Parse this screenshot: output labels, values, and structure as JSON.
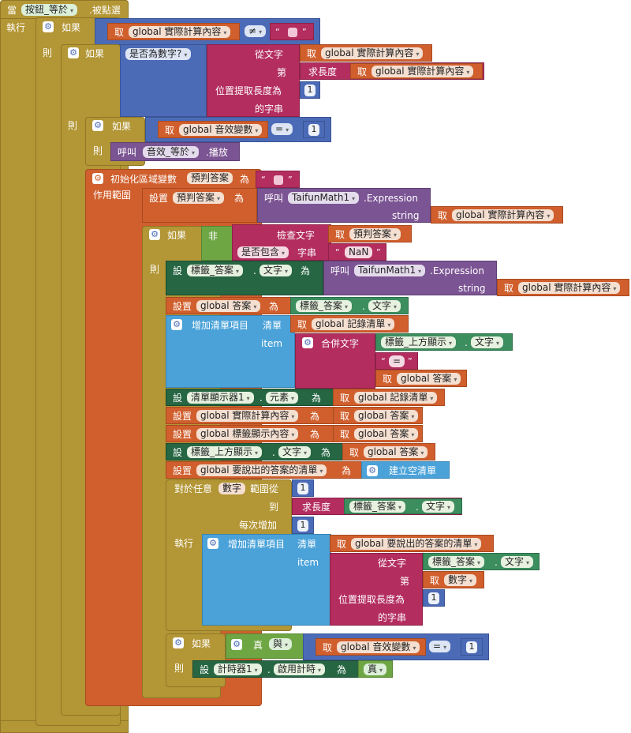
{
  "event": {
    "when": "當",
    "component": "按鈕_等於",
    "event_name": ".被點選",
    "do": "執行"
  },
  "labels": {
    "if": "如果",
    "then": "則",
    "do": "執行",
    "get": "取",
    "call": "呼叫",
    "set": "設置",
    "set_short": "設",
    "to": "為",
    "scope": "作用範圍",
    "is_number": "是否為數字?",
    "from_text": "從文字",
    "start": "第",
    "length": "求長度",
    "substring_length": "位置提取長度為",
    "substring_end": "的字串",
    "init_local": "初始化區域變數",
    "not": "非",
    "check_text": "檢查文字",
    "contains": "是否包含",
    "piece": "字串",
    "add_item": "增加清單項目",
    "list": "清單",
    "item": "item",
    "join": "合併文字",
    "for_range": "對於任意",
    "range_from": "範圍從",
    "range_to": "到",
    "range_step": "每次增加",
    "create_empty": "建立空清單",
    "and": "與",
    "true": "真",
    "play": ".播放",
    "expression": ".Expression",
    "string": "string",
    "dot": ".",
    "neq": "≠",
    "eq": "=",
    "dropdown": "▾"
  },
  "vars": {
    "actual_calc": "global 實際計算內容",
    "sound_var": "global 音效變數",
    "answer_var": "global 答案",
    "record_list": "global 記錄清單",
    "label_display": "global 標籤顯示內容",
    "answers_to_say": "global 要說出的答案的清單",
    "prejudge": "預判答案",
    "number": "數字"
  },
  "components": {
    "sound": "音效_等於",
    "math": "TaifunMath1",
    "label_answer": "標籤_答案",
    "label_top": "標籤_上方顯示",
    "list_view": "清單顯示器1",
    "timer": "計時器1"
  },
  "props": {
    "text": "文字",
    "elements": "元素",
    "timer_enabled": "啟用計時"
  },
  "literals": {
    "one": "1",
    "nan": "NaN",
    "equals_str": "="
  }
}
